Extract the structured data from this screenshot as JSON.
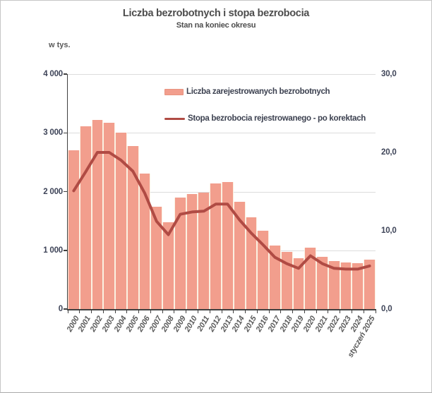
{
  "chart_data": {
    "type": "combo",
    "title": "Liczba bezrobotnych i stopa bezrobocia",
    "subtitle": "Stan na koniec okresu",
    "unit_label": "w tys.",
    "grid": true,
    "legend_position": "inside-top-center",
    "categories": [
      "2000",
      "2001",
      "2002",
      "2003",
      "2004",
      "2005",
      "2006",
      "2007",
      "2008",
      "2009",
      "2010",
      "2011",
      "2012",
      "2013",
      "2014",
      "2015",
      "2016",
      "2017",
      "2018",
      "2019",
      "2020",
      "2021",
      "2022",
      "2023",
      "2024",
      "styczeń 2025"
    ],
    "series": [
      {
        "name": "Liczba zarejestrowanych bezrobotnych",
        "type": "bar",
        "axis": "left",
        "color": "#f29e8d",
        "values": [
          2702.6,
          3115.1,
          3217.0,
          3175.7,
          2999.6,
          2773.0,
          2309.4,
          1746.6,
          1473.8,
          1892.7,
          1954.7,
          1982.7,
          2136.8,
          2157.9,
          1825.2,
          1563.3,
          1335.2,
          1081.7,
          968.9,
          866.4,
          1046.4,
          895.2,
          812.3,
          788.2,
          786.6,
          837.1
        ]
      },
      {
        "name": "Stopa bezrobocia rejestrowanego - po korektach",
        "type": "line",
        "axis": "right",
        "color": "#b04b44",
        "values": [
          15.1,
          17.5,
          20.0,
          20.0,
          19.0,
          17.6,
          14.8,
          11.2,
          9.5,
          12.1,
          12.4,
          12.5,
          13.4,
          13.4,
          11.4,
          9.7,
          8.2,
          6.6,
          5.8,
          5.2,
          6.8,
          5.8,
          5.2,
          5.1,
          5.1,
          5.5
        ]
      }
    ],
    "left_axis": {
      "min": 0,
      "max": 4000,
      "tick_values": [
        4000,
        3000,
        2000,
        1000,
        0
      ],
      "tick_labels": [
        "4 000",
        "3 000",
        "2 000",
        "1 000",
        "0"
      ]
    },
    "right_axis": {
      "min": 0,
      "max": 30,
      "tick_values": [
        30,
        20,
        10,
        0
      ],
      "tick_labels": [
        "30,0",
        "20,0",
        "10,0",
        "0,0"
      ]
    }
  }
}
